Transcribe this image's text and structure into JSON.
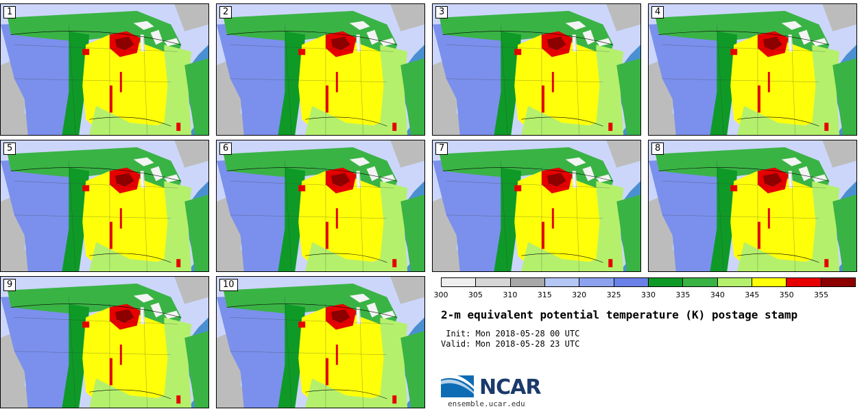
{
  "stamps": [
    {
      "label": "1"
    },
    {
      "label": "2"
    },
    {
      "label": "3"
    },
    {
      "label": "4"
    },
    {
      "label": "5"
    },
    {
      "label": "6"
    },
    {
      "label": "7"
    },
    {
      "label": "8"
    },
    {
      "label": "9"
    },
    {
      "label": "10"
    }
  ],
  "colorbar": {
    "colors": [
      "#eeeeee",
      "#d6d6d6",
      "#a8a8a8",
      "#b4c6f4",
      "#8ca2ef",
      "#6a82e8",
      "#0f9a28",
      "#3ab345",
      "#b4f06c",
      "#ffff0a",
      "#e60000",
      "#8c0000"
    ],
    "ticks": [
      "300",
      "305",
      "310",
      "315",
      "320",
      "325",
      "330",
      "335",
      "340",
      "345",
      "350",
      "355"
    ]
  },
  "title": "2-m equivalent potential temperature (K) postage stamp",
  "init": " Init: Mon 2018-05-28 00 UTC",
  "valid": "Valid: Mon 2018-05-28 23 UTC",
  "logo": {
    "text": "NCAR",
    "url": "ensemble.ucar.edu",
    "colors": {
      "blue": "#0e6cb4",
      "navy": "#1b3a6b"
    }
  },
  "map_colors": {
    "ocean": "#4a8fd0",
    "cold": "#bcbcbc",
    "cool": "#ccd6fa",
    "mid_blue": "#7a90ec",
    "green_dark": "#0f9a28",
    "green": "#3ab345",
    "light_green": "#b4f06c",
    "yellow": "#ffff0a",
    "red": "#e60000",
    "dark_red": "#8c0000",
    "lakes": "#f4f4f4"
  }
}
